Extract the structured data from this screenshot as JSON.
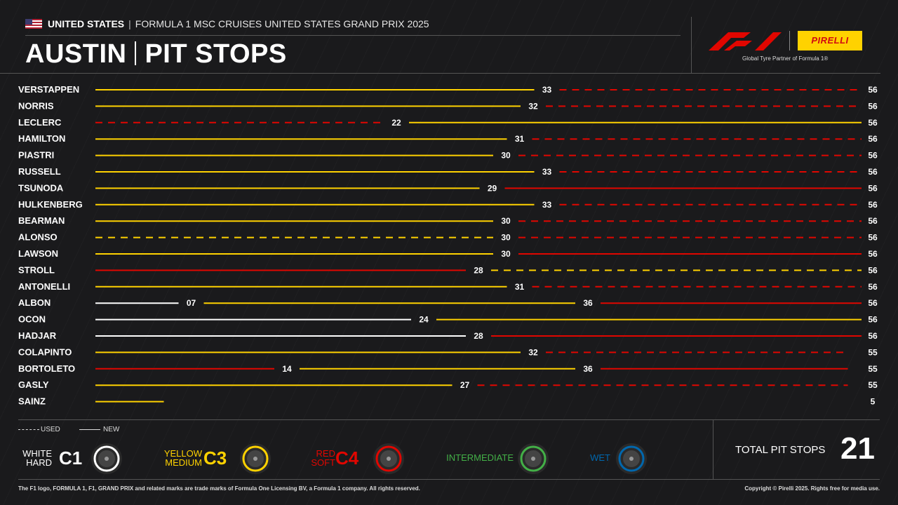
{
  "header": {
    "country": "UNITED STATES",
    "event": "FORMULA 1 MSC CRUISES UNITED STATES GRAND PRIX 2025",
    "title_left": "AUSTIN",
    "title_right": "PIT STOPS"
  },
  "logos": {
    "f1": "F1",
    "pirelli": "PIRELLI",
    "partner_text": "Global Tyre Partner of Formula 1®"
  },
  "colors": {
    "background": "#1a1a1c",
    "hard": "#ffffff",
    "medium": "#ffd200",
    "soft": "#e10600",
    "intermediate": "#43b047",
    "wet": "#0067ad",
    "accent": "#ffd200"
  },
  "legend": {
    "used_label": "USED",
    "new_label": "NEW",
    "compounds": [
      {
        "line1": "WHITE",
        "line2": "HARD",
        "code": "C1",
        "color": "#ffffff"
      },
      {
        "line1": "YELLOW",
        "line2": "MEDIUM",
        "code": "C3",
        "color": "#ffd200"
      },
      {
        "line1": "RED",
        "line2": "SOFT",
        "code": "C4",
        "color": "#e10600"
      },
      {
        "line1": "INTERMEDIATE",
        "line2": "",
        "code": "",
        "color": "#43b047"
      },
      {
        "line1": "WET",
        "line2": "",
        "code": "",
        "color": "#0067ad"
      }
    ]
  },
  "total": {
    "label": "TOTAL PIT STOPS",
    "value": "21"
  },
  "footer": {
    "left": "The F1 logo, FORMULA 1, F1, GRAND PRIX and related marks are trade marks of Formula One Licensing BV, a Formula 1 company. All rights reserved.",
    "right": "Copyright © Pirelli 2025. Rights free for media use."
  },
  "chart_data": {
    "type": "bar",
    "xlim": [
      0,
      56
    ],
    "drivers": [
      {
        "name": "VERSTAPPEN",
        "stints": [
          {
            "end": 33,
            "compound": "medium",
            "used": false
          },
          {
            "end": 56,
            "compound": "soft",
            "used": true
          }
        ]
      },
      {
        "name": "NORRIS",
        "stints": [
          {
            "end": 32,
            "compound": "medium",
            "used": false
          },
          {
            "end": 56,
            "compound": "soft",
            "used": true
          }
        ]
      },
      {
        "name": "LECLERC",
        "stints": [
          {
            "end": 22,
            "compound": "soft",
            "used": true
          },
          {
            "end": 56,
            "compound": "medium",
            "used": false
          }
        ]
      },
      {
        "name": "HAMILTON",
        "stints": [
          {
            "end": 31,
            "compound": "medium",
            "used": false
          },
          {
            "end": 56,
            "compound": "soft",
            "used": true
          }
        ]
      },
      {
        "name": "PIASTRI",
        "stints": [
          {
            "end": 30,
            "compound": "medium",
            "used": false
          },
          {
            "end": 56,
            "compound": "soft",
            "used": true
          }
        ]
      },
      {
        "name": "RUSSELL",
        "stints": [
          {
            "end": 33,
            "compound": "medium",
            "used": false
          },
          {
            "end": 56,
            "compound": "soft",
            "used": true
          }
        ]
      },
      {
        "name": "TSUNODA",
        "stints": [
          {
            "end": 29,
            "compound": "medium",
            "used": false
          },
          {
            "end": 56,
            "compound": "soft",
            "used": false
          }
        ]
      },
      {
        "name": "HULKENBERG",
        "stints": [
          {
            "end": 33,
            "compound": "medium",
            "used": false
          },
          {
            "end": 56,
            "compound": "soft",
            "used": true
          }
        ]
      },
      {
        "name": "BEARMAN",
        "stints": [
          {
            "end": 30,
            "compound": "medium",
            "used": false
          },
          {
            "end": 56,
            "compound": "soft",
            "used": true
          }
        ]
      },
      {
        "name": "ALONSO",
        "stints": [
          {
            "end": 30,
            "compound": "medium",
            "used": true
          },
          {
            "end": 56,
            "compound": "soft",
            "used": true
          }
        ]
      },
      {
        "name": "LAWSON",
        "stints": [
          {
            "end": 30,
            "compound": "medium",
            "used": false
          },
          {
            "end": 56,
            "compound": "soft",
            "used": false
          }
        ]
      },
      {
        "name": "STROLL",
        "stints": [
          {
            "end": 28,
            "compound": "soft",
            "used": false
          },
          {
            "end": 56,
            "compound": "medium",
            "used": true
          }
        ]
      },
      {
        "name": "ANTONELLI",
        "stints": [
          {
            "end": 31,
            "compound": "medium",
            "used": false
          },
          {
            "end": 56,
            "compound": "soft",
            "used": true
          }
        ]
      },
      {
        "name": "ALBON",
        "stints": [
          {
            "end": 7,
            "label": "07",
            "compound": "hard",
            "used": false
          },
          {
            "end": 36,
            "compound": "medium",
            "used": false
          },
          {
            "end": 56,
            "compound": "soft",
            "used": false
          }
        ]
      },
      {
        "name": "OCON",
        "stints": [
          {
            "end": 24,
            "compound": "hard",
            "used": false
          },
          {
            "end": 56,
            "compound": "medium",
            "used": false
          }
        ]
      },
      {
        "name": "HADJAR",
        "stints": [
          {
            "end": 28,
            "compound": "hard",
            "used": false
          },
          {
            "end": 56,
            "compound": "soft",
            "used": false
          }
        ]
      },
      {
        "name": "COLAPINTO",
        "stints": [
          {
            "end": 32,
            "compound": "medium",
            "used": false
          },
          {
            "end": 55,
            "compound": "soft",
            "used": true
          }
        ]
      },
      {
        "name": "BORTOLETO",
        "stints": [
          {
            "end": 14,
            "compound": "soft",
            "used": false
          },
          {
            "end": 36,
            "compound": "medium",
            "used": false
          },
          {
            "end": 55,
            "compound": "soft",
            "used": false
          }
        ]
      },
      {
        "name": "GASLY",
        "stints": [
          {
            "end": 27,
            "compound": "medium",
            "used": false
          },
          {
            "end": 55,
            "compound": "soft",
            "used": true
          }
        ]
      },
      {
        "name": "SAINZ",
        "stints": [
          {
            "end": 5,
            "compound": "medium",
            "used": false
          }
        ],
        "hide_intermediate_labels": true
      }
    ]
  }
}
